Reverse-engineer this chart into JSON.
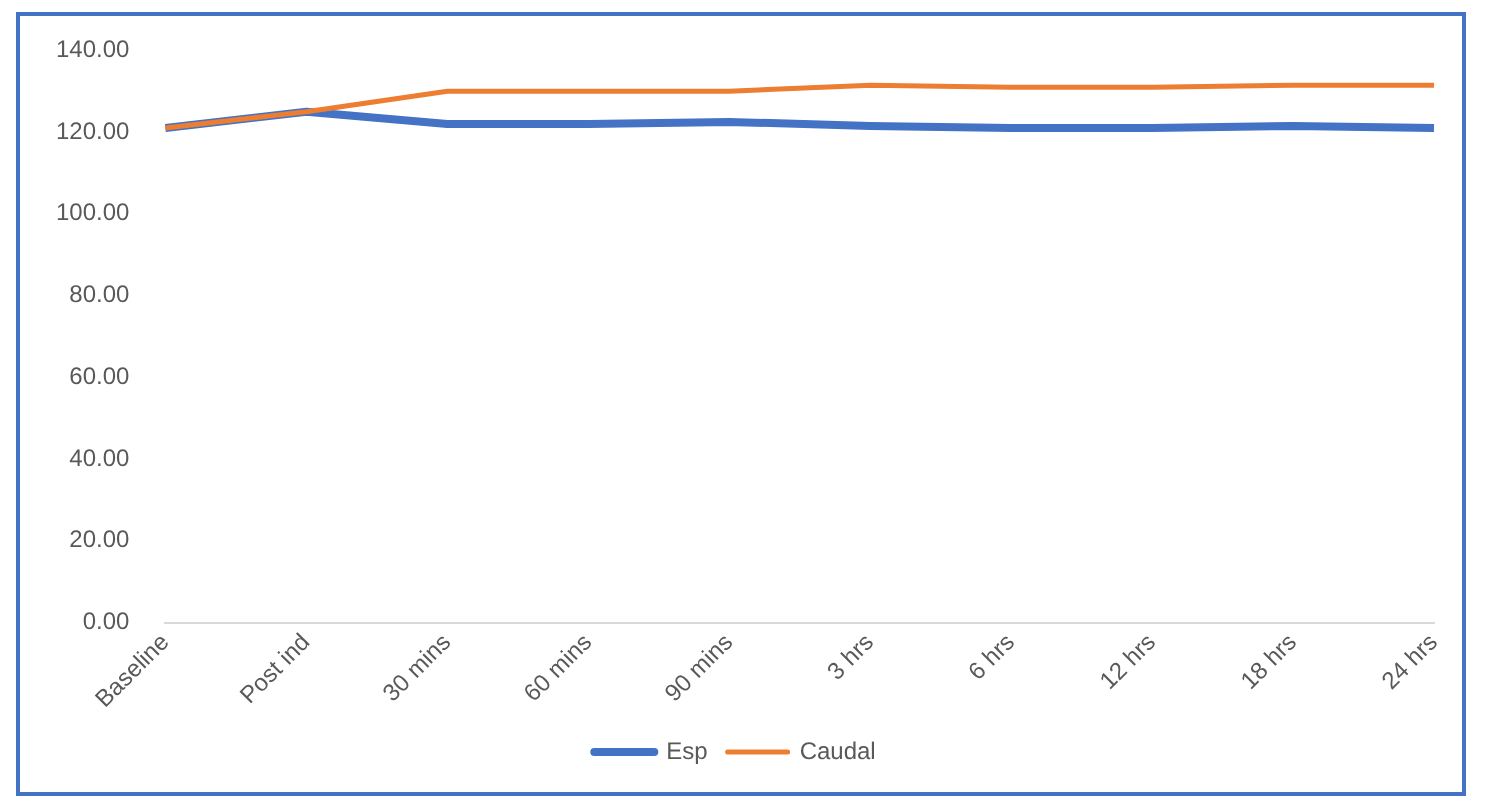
{
  "chart_data": {
    "type": "line",
    "categories": [
      "Baseline",
      "Post ind",
      "30 mins",
      "60 mins",
      "90 mins",
      "3 hrs",
      "6 hrs",
      "12 hrs",
      "18 hrs",
      "24 hrs"
    ],
    "series": [
      {
        "name": "Esp",
        "color": "#4472c4",
        "values": [
          121,
          125,
          122,
          122,
          122.5,
          121.5,
          121,
          121,
          121.5,
          121
        ]
      },
      {
        "name": "Caudal",
        "color": "#ed7d31",
        "values": [
          121,
          125,
          130,
          130,
          130,
          131.5,
          131,
          131,
          131.5,
          131.5
        ]
      }
    ],
    "ylim": [
      0,
      140
    ],
    "yticks": [
      {
        "value": 0,
        "label": "0.00"
      },
      {
        "value": 20,
        "label": "20.00"
      },
      {
        "value": 40,
        "label": "40.00"
      },
      {
        "value": 60,
        "label": "60.00"
      },
      {
        "value": 80,
        "label": "80.00"
      },
      {
        "value": 100,
        "label": "100.00"
      },
      {
        "value": 120,
        "label": "120.00"
      },
      {
        "value": 140,
        "label": "140.00"
      }
    ],
    "grid": false,
    "legend": "bottom",
    "marker": "none",
    "line_style": "solid"
  }
}
